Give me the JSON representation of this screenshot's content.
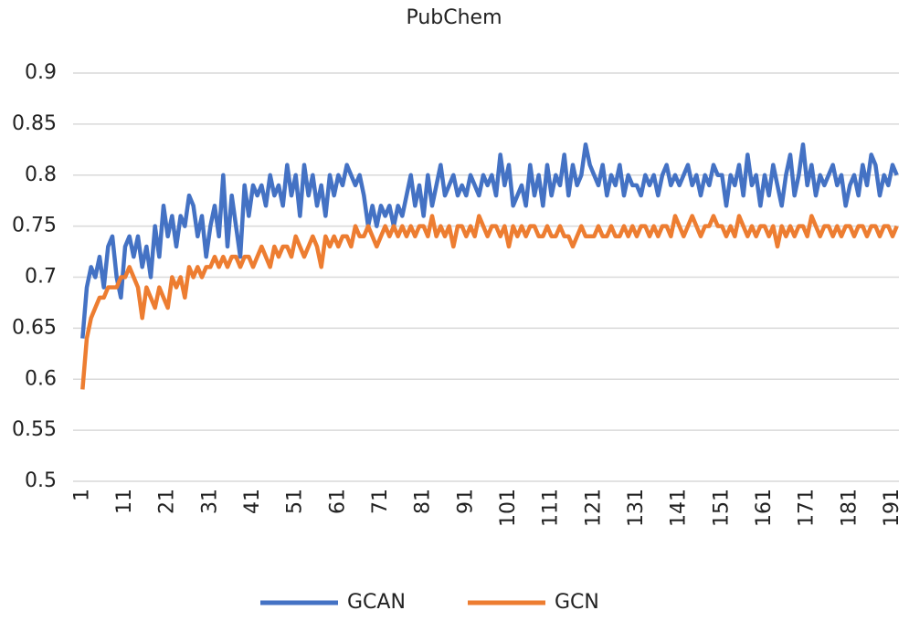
{
  "chart_data": {
    "type": "line",
    "title": "PubChem",
    "categories": [
      "1",
      null,
      null,
      null,
      null,
      null,
      null,
      null,
      null,
      null,
      "11",
      null,
      null,
      null,
      null,
      null,
      null,
      null,
      null,
      null,
      "21",
      null,
      null,
      null,
      null,
      null,
      null,
      null,
      null,
      null,
      "31",
      null,
      null,
      null,
      null,
      null,
      null,
      null,
      null,
      null,
      "41",
      null,
      null,
      null,
      null,
      null,
      null,
      null,
      null,
      null,
      "51",
      null,
      null,
      null,
      null,
      null,
      null,
      null,
      null,
      null,
      "61",
      null,
      null,
      null,
      null,
      null,
      null,
      null,
      null,
      null,
      "71",
      null,
      null,
      null,
      null,
      null,
      null,
      null,
      null,
      null,
      "81",
      null,
      null,
      null,
      null,
      null,
      null,
      null,
      null,
      null,
      "91",
      null,
      null,
      null,
      null,
      null,
      null,
      null,
      null,
      null,
      "101",
      null,
      null,
      null,
      null,
      null,
      null,
      null,
      null,
      null,
      "111",
      null,
      null,
      null,
      null,
      null,
      null,
      null,
      null,
      null,
      "121",
      null,
      null,
      null,
      null,
      null,
      null,
      null,
      null,
      null,
      "131",
      null,
      null,
      null,
      null,
      null,
      null,
      null,
      null,
      null,
      "141",
      null,
      null,
      null,
      null,
      null,
      null,
      null,
      null,
      null,
      "151",
      null,
      null,
      null,
      null,
      null,
      null,
      null,
      null,
      null,
      "161",
      null,
      null,
      null,
      null,
      null,
      null,
      null,
      null,
      null,
      "171",
      null,
      null,
      null,
      null,
      null,
      null,
      null,
      null,
      null,
      "181",
      null,
      null,
      null,
      null,
      null,
      null,
      null,
      null,
      null,
      "191",
      null
    ],
    "series": [
      {
        "name": "GCAN",
        "color": "#4472c4",
        "values": [
          0.64,
          0.69,
          0.71,
          0.7,
          0.72,
          0.69,
          0.73,
          0.74,
          0.7,
          0.68,
          0.73,
          0.74,
          0.72,
          0.74,
          0.71,
          0.73,
          0.7,
          0.75,
          0.72,
          0.77,
          0.74,
          0.76,
          0.73,
          0.76,
          0.75,
          0.78,
          0.77,
          0.74,
          0.76,
          0.72,
          0.75,
          0.77,
          0.74,
          0.8,
          0.73,
          0.78,
          0.75,
          0.72,
          0.79,
          0.76,
          0.79,
          0.78,
          0.79,
          0.77,
          0.8,
          0.78,
          0.79,
          0.77,
          0.81,
          0.78,
          0.8,
          0.76,
          0.81,
          0.78,
          0.8,
          0.77,
          0.79,
          0.76,
          0.8,
          0.78,
          0.8,
          0.79,
          0.81,
          0.8,
          0.79,
          0.8,
          0.78,
          0.75,
          0.77,
          0.75,
          0.77,
          0.76,
          0.77,
          0.75,
          0.77,
          0.76,
          0.78,
          0.8,
          0.77,
          0.79,
          0.76,
          0.8,
          0.77,
          0.79,
          0.81,
          0.78,
          0.79,
          0.8,
          0.78,
          0.79,
          0.78,
          0.8,
          0.79,
          0.78,
          0.8,
          0.79,
          0.8,
          0.78,
          0.82,
          0.79,
          0.81,
          0.77,
          0.78,
          0.79,
          0.77,
          0.81,
          0.78,
          0.8,
          0.77,
          0.81,
          0.78,
          0.8,
          0.79,
          0.82,
          0.78,
          0.81,
          0.79,
          0.8,
          0.83,
          0.81,
          0.8,
          0.79,
          0.81,
          0.78,
          0.8,
          0.79,
          0.81,
          0.78,
          0.8,
          0.79,
          0.79,
          0.78,
          0.8,
          0.79,
          0.8,
          0.78,
          0.8,
          0.81,
          0.79,
          0.8,
          0.79,
          0.8,
          0.81,
          0.79,
          0.8,
          0.78,
          0.8,
          0.79,
          0.81,
          0.8,
          0.8,
          0.77,
          0.8,
          0.79,
          0.81,
          0.78,
          0.82,
          0.79,
          0.8,
          0.77,
          0.8,
          0.78,
          0.81,
          0.79,
          0.77,
          0.8,
          0.82,
          0.78,
          0.8,
          0.83,
          0.79,
          0.81,
          0.78,
          0.8,
          0.79,
          0.8,
          0.81,
          0.79,
          0.8,
          0.77,
          0.79,
          0.8,
          0.78,
          0.81,
          0.79,
          0.82,
          0.81,
          0.78,
          0.8,
          0.79,
          0.81,
          0.8
        ]
      },
      {
        "name": "GCN",
        "color": "#ed7d31",
        "values": [
          0.59,
          0.64,
          0.66,
          0.67,
          0.68,
          0.68,
          0.69,
          0.69,
          0.69,
          0.7,
          0.7,
          0.71,
          0.7,
          0.69,
          0.66,
          0.69,
          0.68,
          0.67,
          0.69,
          0.68,
          0.67,
          0.7,
          0.69,
          0.7,
          0.68,
          0.71,
          0.7,
          0.71,
          0.7,
          0.71,
          0.71,
          0.72,
          0.71,
          0.72,
          0.71,
          0.72,
          0.72,
          0.71,
          0.72,
          0.72,
          0.71,
          0.72,
          0.73,
          0.72,
          0.71,
          0.73,
          0.72,
          0.73,
          0.73,
          0.72,
          0.74,
          0.73,
          0.72,
          0.73,
          0.74,
          0.73,
          0.71,
          0.74,
          0.73,
          0.74,
          0.73,
          0.74,
          0.74,
          0.73,
          0.75,
          0.74,
          0.74,
          0.75,
          0.74,
          0.73,
          0.74,
          0.75,
          0.74,
          0.75,
          0.74,
          0.75,
          0.74,
          0.75,
          0.74,
          0.75,
          0.75,
          0.74,
          0.76,
          0.74,
          0.75,
          0.74,
          0.75,
          0.73,
          0.75,
          0.75,
          0.74,
          0.75,
          0.74,
          0.76,
          0.75,
          0.74,
          0.75,
          0.75,
          0.74,
          0.75,
          0.73,
          0.75,
          0.74,
          0.75,
          0.74,
          0.75,
          0.75,
          0.74,
          0.74,
          0.75,
          0.74,
          0.74,
          0.75,
          0.74,
          0.74,
          0.73,
          0.74,
          0.75,
          0.74,
          0.74,
          0.74,
          0.75,
          0.74,
          0.74,
          0.75,
          0.74,
          0.74,
          0.75,
          0.74,
          0.75,
          0.74,
          0.75,
          0.75,
          0.74,
          0.75,
          0.74,
          0.75,
          0.75,
          0.74,
          0.76,
          0.75,
          0.74,
          0.75,
          0.76,
          0.75,
          0.74,
          0.75,
          0.75,
          0.76,
          0.75,
          0.75,
          0.74,
          0.75,
          0.74,
          0.76,
          0.75,
          0.74,
          0.75,
          0.74,
          0.75,
          0.75,
          0.74,
          0.75,
          0.73,
          0.75,
          0.74,
          0.75,
          0.74,
          0.75,
          0.75,
          0.74,
          0.76,
          0.75,
          0.74,
          0.75,
          0.75,
          0.74,
          0.75,
          0.74,
          0.75,
          0.75,
          0.74,
          0.75,
          0.75,
          0.74,
          0.75,
          0.75,
          0.74,
          0.75,
          0.75,
          0.74,
          0.75
        ]
      }
    ],
    "ylim": [
      0.5,
      0.9
    ],
    "yticks": [
      0.5,
      0.55,
      0.6,
      0.65,
      0.7,
      0.75,
      0.8,
      0.85,
      0.9
    ],
    "grid": true,
    "legend": "bottom"
  }
}
